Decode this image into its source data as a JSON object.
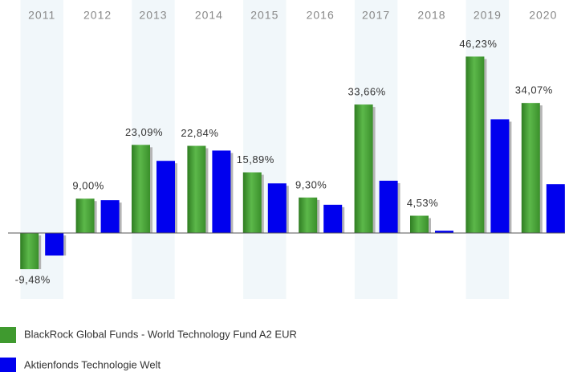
{
  "chart_data": {
    "type": "bar",
    "categories": [
      "2011",
      "2012",
      "2013",
      "2014",
      "2015",
      "2016",
      "2017",
      "2018",
      "2019",
      "2020"
    ],
    "series": [
      {
        "name": "BlackRock Global Funds - World Technology Fund A2 EUR",
        "color": "#3f9a2f",
        "values": [
          -9.48,
          9.0,
          23.09,
          22.84,
          15.89,
          9.3,
          33.66,
          4.53,
          46.23,
          34.07
        ],
        "value_labels": [
          "-9,48%",
          "9,00%",
          "23,09%",
          "22,84%",
          "15,89%",
          "9,30%",
          "33,66%",
          "4,53%",
          "46,23%",
          "34,07%"
        ]
      },
      {
        "name": "Aktienfonds Technologie  Welt",
        "color": "#0000ee",
        "values": [
          -5.9,
          8.6,
          18.9,
          21.6,
          13.0,
          7.4,
          13.7,
          0.6,
          29.8,
          12.8
        ]
      }
    ],
    "ylim": [
      -12,
      48
    ]
  }
}
